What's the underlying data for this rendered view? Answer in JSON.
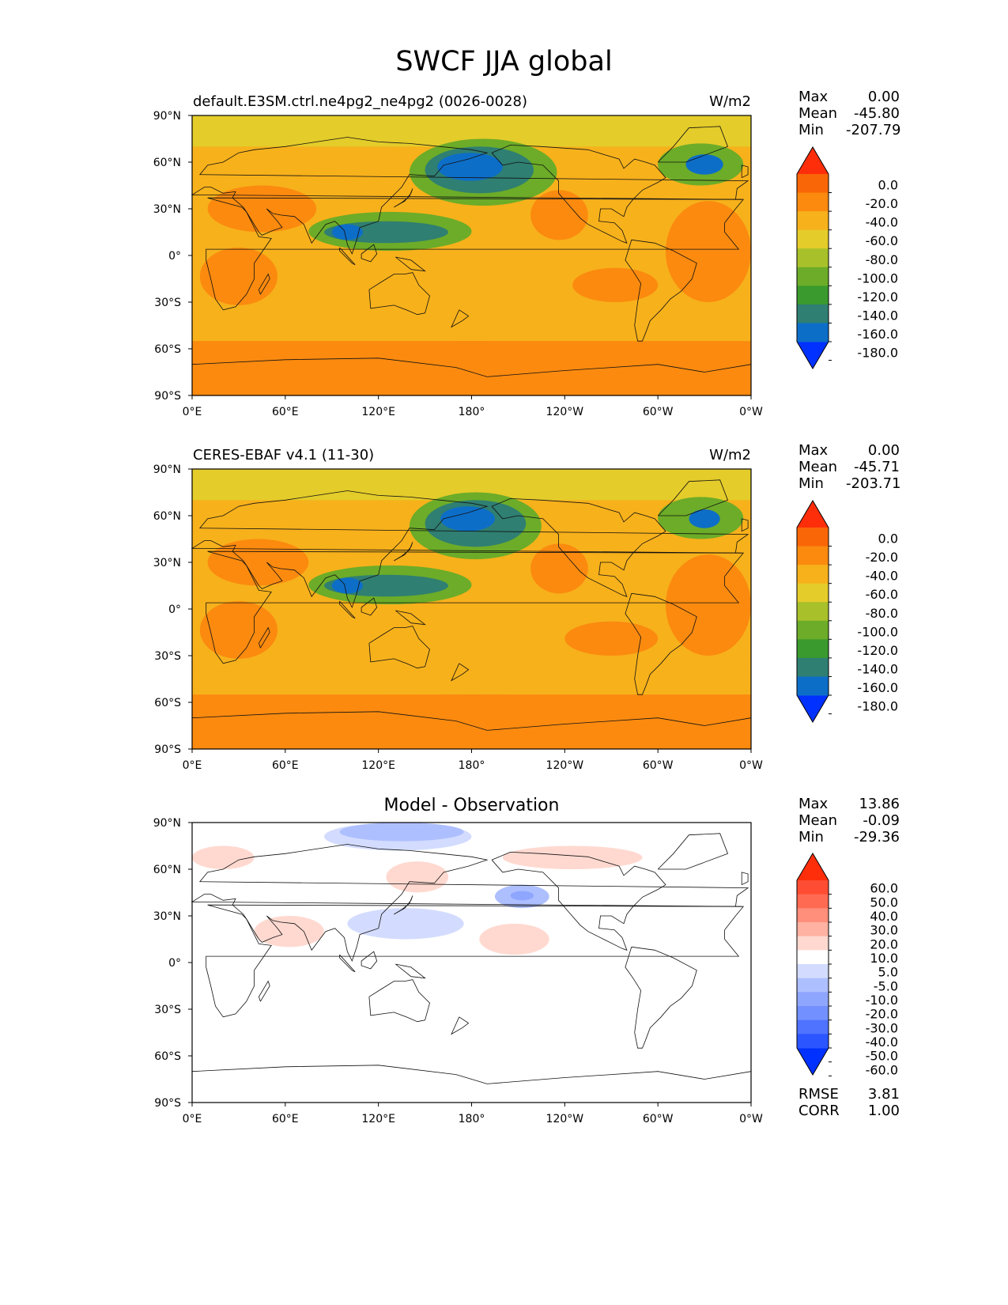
{
  "title": "SWCF JJA global",
  "colors": {
    "sw_levels": [
      "#0131ff",
      "#0d6ec8",
      "#2f7f72",
      "#3a9a2e",
      "#6cac28",
      "#a8c12a",
      "#e4cc2a",
      "#f7b11b",
      "#fb8a0f",
      "#f96608",
      "#fe2e0b"
    ],
    "diff_levels": [
      "#0131ff",
      "#2b55ff",
      "#4f72ff",
      "#7290ff",
      "#8fa6ff",
      "#aebfff",
      "#d3dcff",
      "#ffffff",
      "#ffd9d0",
      "#ffb2a1",
      "#ff8e7a",
      "#ff6a53",
      "#ff4d33",
      "#fe2e0b"
    ]
  },
  "panels": [
    {
      "title": "default.E3SM.ctrl.ne4pg2_ne4pg2 (0026-0028)",
      "units": "W/m2",
      "stats": [
        {
          "k": "Max",
          "v": "0.00"
        },
        {
          "k": "Mean",
          "v": "-45.80"
        },
        {
          "k": "Min",
          "v": "-207.79"
        }
      ]
    },
    {
      "title": "CERES-EBAF v4.1 (11-30)",
      "units": "W/m2",
      "stats": [
        {
          "k": "Max",
          "v": "0.00"
        },
        {
          "k": "Mean",
          "v": "-45.71"
        },
        {
          "k": "Min",
          "v": "-203.71"
        }
      ]
    },
    {
      "title": "Model - Observation",
      "units": "",
      "stats": [
        {
          "k": "Max",
          "v": "13.86"
        },
        {
          "k": "Mean",
          "v": "-0.09"
        },
        {
          "k": "Min",
          "v": "-29.36"
        }
      ],
      "extra_stats": [
        {
          "k": "RMSE",
          "v": "3.81"
        },
        {
          "k": "CORR",
          "v": "1.00"
        }
      ]
    }
  ],
  "chart_data": {
    "type": "heatmap",
    "projection": "plate-carree",
    "xticks": [
      "0°E",
      "60°E",
      "120°E",
      "180°",
      "120°W",
      "60°W",
      "0°W"
    ],
    "yticks": [
      "90°N",
      "60°N",
      "30°N",
      "0°",
      "30°S",
      "60°S",
      "90°S"
    ],
    "colorbar_ticks": [
      "0.0",
      "-20.0",
      "-40.0",
      "-60.0",
      "-80.0",
      "-100.0",
      "-120.0",
      "-140.0",
      "-160.0",
      "-180.0"
    ],
    "diff_colorbar_ticks": [
      "60.0",
      "50.0",
      "40.0",
      "30.0",
      "20.0",
      "10.0",
      "5.0",
      "-5.0",
      "-10.0",
      "-20.0",
      "-30.0",
      "-40.0",
      "-50.0",
      "-60.0"
    ],
    "features": {
      "model": [
        {
          "lon": [
            75,
            180
          ],
          "lat": [
            3,
            28
          ],
          "value": -110
        },
        {
          "lon": [
            85,
            165
          ],
          "lat": [
            8,
            22
          ],
          "value": -150
        },
        {
          "lon": [
            90,
            110
          ],
          "lat": [
            10,
            20
          ],
          "value": -175
        },
        {
          "lon": [
            140,
            235
          ],
          "lat": [
            32,
            75
          ],
          "value": -115
        },
        {
          "lon": [
            150,
            220
          ],
          "lat": [
            40,
            70
          ],
          "value": -145
        },
        {
          "lon": [
            158,
            200
          ],
          "lat": [
            48,
            66
          ],
          "value": -168
        },
        {
          "lon": [
            300,
            355
          ],
          "lat": [
            45,
            72
          ],
          "value": -120
        },
        {
          "lon": [
            318,
            342
          ],
          "lat": [
            52,
            65
          ],
          "value": -165
        },
        {
          "lon": [
            5,
            55
          ],
          "lat": [
            -32,
            5
          ],
          "value": -30
        },
        {
          "lon": [
            10,
            80
          ],
          "lat": [
            15,
            45
          ],
          "value": -30
        },
        {
          "lon": [
            218,
            255
          ],
          "lat": [
            10,
            42
          ],
          "value": -30
        },
        {
          "lon": [
            245,
            300
          ],
          "lat": [
            -30,
            -8
          ],
          "value": -30
        },
        {
          "lon": [
            305,
            360
          ],
          "lat": [
            -30,
            35
          ],
          "value": -30
        },
        {
          "lon": [
            0,
            360
          ],
          "lat": [
            -90,
            -55
          ],
          "value": -25
        }
      ],
      "obs": [
        {
          "lon": [
            75,
            180
          ],
          "lat": [
            3,
            28
          ],
          "value": -110
        },
        {
          "lon": [
            85,
            165
          ],
          "lat": [
            8,
            22
          ],
          "value": -150
        },
        {
          "lon": [
            90,
            110
          ],
          "lat": [
            10,
            20
          ],
          "value": -175
        },
        {
          "lon": [
            140,
            225
          ],
          "lat": [
            32,
            75
          ],
          "value": -115
        },
        {
          "lon": [
            150,
            215
          ],
          "lat": [
            40,
            70
          ],
          "value": -145
        },
        {
          "lon": [
            160,
            195
          ],
          "lat": [
            50,
            66
          ],
          "value": -168
        },
        {
          "lon": [
            300,
            355
          ],
          "lat": [
            45,
            72
          ],
          "value": -120
        },
        {
          "lon": [
            320,
            340
          ],
          "lat": [
            52,
            64
          ],
          "value": -165
        },
        {
          "lon": [
            5,
            55
          ],
          "lat": [
            -32,
            5
          ],
          "value": -30
        },
        {
          "lon": [
            10,
            75
          ],
          "lat": [
            15,
            45
          ],
          "value": -30
        },
        {
          "lon": [
            218,
            255
          ],
          "lat": [
            10,
            42
          ],
          "value": -30
        },
        {
          "lon": [
            240,
            300
          ],
          "lat": [
            -30,
            -8
          ],
          "value": -30
        },
        {
          "lon": [
            305,
            360
          ],
          "lat": [
            -30,
            35
          ],
          "value": -30
        },
        {
          "lon": [
            0,
            360
          ],
          "lat": [
            -90,
            -55
          ],
          "value": -25
        }
      ],
      "diff": [
        {
          "lon": [
            85,
            180
          ],
          "lat": [
            72,
            90
          ],
          "value": -8
        },
        {
          "lon": [
            95,
            175
          ],
          "lat": [
            78,
            90
          ],
          "value": -15
        },
        {
          "lon": [
            195,
            230
          ],
          "lat": [
            35,
            50
          ],
          "value": -12
        },
        {
          "lon": [
            205,
            220
          ],
          "lat": [
            40,
            46
          ],
          "value": -22
        },
        {
          "lon": [
            40,
            85
          ],
          "lat": [
            10,
            30
          ],
          "value": 8
        },
        {
          "lon": [
            60,
            75
          ],
          "lat": [
            15,
            25
          ],
          "value": 12
        },
        {
          "lon": [
            125,
            165
          ],
          "lat": [
            45,
            65
          ],
          "value": 8
        },
        {
          "lon": [
            185,
            230
          ],
          "lat": [
            5,
            25
          ],
          "value": 8
        },
        {
          "lon": [
            195,
            210
          ],
          "lat": [
            10,
            18
          ],
          "value": 12
        },
        {
          "lon": [
            100,
            175
          ],
          "lat": [
            15,
            35
          ],
          "value": -8
        },
        {
          "lon": [
            200,
            290
          ],
          "lat": [
            60,
            75
          ],
          "value": 7
        },
        {
          "lon": [
            0,
            40
          ],
          "lat": [
            60,
            75
          ],
          "value": 7
        }
      ]
    }
  }
}
